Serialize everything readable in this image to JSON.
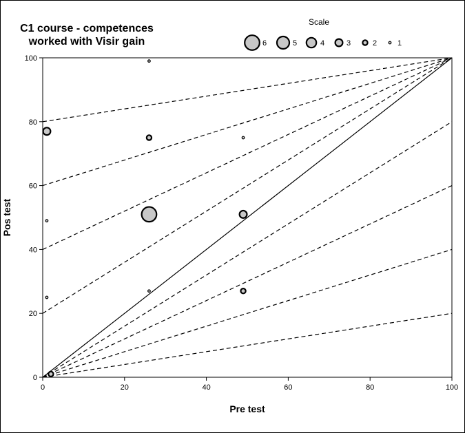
{
  "chart_data": {
    "type": "scatter",
    "title_lines": [
      "C1 course - competences",
      "worked with Visir gain"
    ],
    "xlabel": "Pre test",
    "ylabel": "Pos test",
    "xlim": [
      0,
      100
    ],
    "ylim": [
      0,
      100
    ],
    "x_ticks": [
      0,
      20,
      40,
      60,
      80,
      100
    ],
    "y_ticks": [
      0,
      20,
      40,
      60,
      80,
      100
    ],
    "legend": {
      "title": "Scale",
      "placement": "top-right",
      "entries": [
        {
          "label": "6",
          "size": 6
        },
        {
          "label": "5",
          "size": 5
        },
        {
          "label": "4",
          "size": 4
        },
        {
          "label": "3",
          "size": 3
        },
        {
          "label": "2",
          "size": 2
        },
        {
          "label": "1",
          "size": 1
        }
      ]
    },
    "points": [
      {
        "x": 1,
        "y": 77,
        "size": 3
      },
      {
        "x": 1,
        "y": 49,
        "size": 1
      },
      {
        "x": 1,
        "y": 25,
        "size": 1
      },
      {
        "x": 26,
        "y": 99,
        "size": 1
      },
      {
        "x": 26,
        "y": 75,
        "size": 2
      },
      {
        "x": 26,
        "y": 51,
        "size": 6
      },
      {
        "x": 26,
        "y": 27,
        "size": 1
      },
      {
        "x": 49,
        "y": 75,
        "size": 1
      },
      {
        "x": 49,
        "y": 51,
        "size": 3
      },
      {
        "x": 49,
        "y": 27,
        "size": 2
      },
      {
        "x": 2,
        "y": 1,
        "size": 2
      }
    ],
    "reference_lines": {
      "identity": {
        "from": [
          0,
          0
        ],
        "to": [
          100,
          100
        ]
      },
      "gain_lines_upper": [
        {
          "from": [
            0,
            80
          ],
          "to": [
            100,
            100
          ]
        },
        {
          "from": [
            0,
            60
          ],
          "to": [
            100,
            100
          ]
        },
        {
          "from": [
            0,
            40
          ],
          "to": [
            100,
            100
          ]
        },
        {
          "from": [
            0,
            20
          ],
          "to": [
            100,
            100
          ]
        }
      ],
      "gain_lines_lower": [
        {
          "from": [
            0,
            0
          ],
          "to": [
            100,
            80
          ]
        },
        {
          "from": [
            0,
            0
          ],
          "to": [
            100,
            60
          ]
        },
        {
          "from": [
            0,
            0
          ],
          "to": [
            100,
            40
          ]
        },
        {
          "from": [
            0,
            0
          ],
          "to": [
            100,
            20
          ]
        }
      ]
    }
  }
}
